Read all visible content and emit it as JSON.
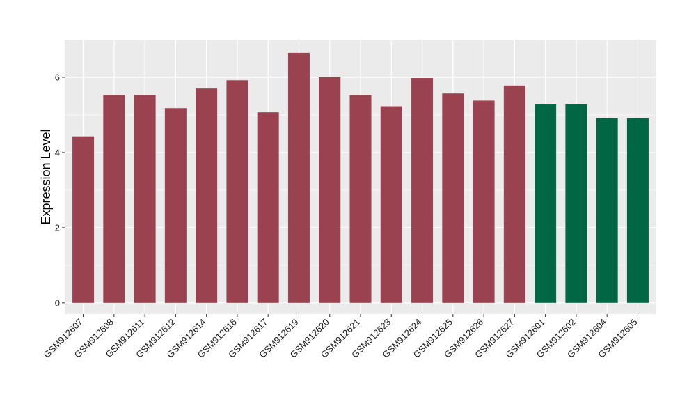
{
  "chart_data": {
    "type": "bar",
    "ylabel": "Expression Level",
    "xlabel": "",
    "ylim": [
      -0.3,
      7.0
    ],
    "yticks": [
      0,
      2,
      4,
      6
    ],
    "grid": true,
    "categories": [
      "GSM912607",
      "GSM912608",
      "GSM912611",
      "GSM912612",
      "GSM912614",
      "GSM912616",
      "GSM912617",
      "GSM912619",
      "GSM912620",
      "GSM912621",
      "GSM912623",
      "GSM912624",
      "GSM912625",
      "GSM912626",
      "GSM912627",
      "GSM912601",
      "GSM912602",
      "GSM912604",
      "GSM912605"
    ],
    "values": [
      4.43,
      5.53,
      5.53,
      5.18,
      5.7,
      5.92,
      5.07,
      6.65,
      6.0,
      5.53,
      5.23,
      5.98,
      5.57,
      5.38,
      5.78,
      5.28,
      5.28,
      4.91,
      4.91
    ],
    "groups": [
      "a",
      "a",
      "a",
      "a",
      "a",
      "a",
      "a",
      "a",
      "a",
      "a",
      "a",
      "a",
      "a",
      "a",
      "a",
      "b",
      "b",
      "b",
      "b"
    ],
    "colors": {
      "a": "#9a4250",
      "b": "#006644"
    },
    "panel_background": "#ebebeb",
    "grid_color": "#ffffff"
  }
}
